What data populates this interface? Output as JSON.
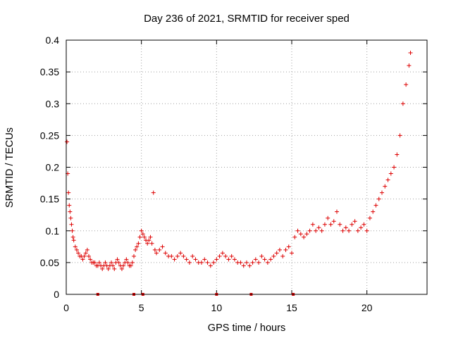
{
  "chart_data": {
    "type": "scatter",
    "title": "Day 236 of 2021, SRMTID for receiver sped",
    "xlabel": "GPS time / hours",
    "ylabel": "SRMTID / TECUs",
    "xlim": [
      0,
      24
    ],
    "ylim": [
      0,
      0.4
    ],
    "x_ticks": [
      0,
      5,
      10,
      15,
      20
    ],
    "x_tick_labels": [
      "0",
      "5",
      "10",
      "15",
      "20"
    ],
    "y_ticks": [
      0,
      0.05,
      0.1,
      0.15,
      0.2,
      0.25,
      0.3,
      0.35,
      0.4
    ],
    "y_tick_labels": [
      "0",
      "0.05",
      "0.1",
      "0.15",
      "0.2",
      "0.25",
      "0.3",
      "0.35",
      "0.4"
    ],
    "grid": true,
    "marker": "plus",
    "marker_color": "#dd0000",
    "baseline_marks_x": [
      2.1,
      4.5,
      5.1,
      10.0,
      12.3,
      15.1
    ],
    "series": [
      {
        "name": "SRMTID",
        "x": [
          0.05,
          0.1,
          0.15,
          0.2,
          0.25,
          0.3,
          0.35,
          0.4,
          0.45,
          0.5,
          0.6,
          0.7,
          0.8,
          0.9,
          1.0,
          1.1,
          1.2,
          1.3,
          1.4,
          1.5,
          1.6,
          1.7,
          1.8,
          1.9,
          2.0,
          2.1,
          2.2,
          2.3,
          2.4,
          2.5,
          2.6,
          2.7,
          2.8,
          2.9,
          3.0,
          3.1,
          3.2,
          3.3,
          3.4,
          3.5,
          3.6,
          3.7,
          3.8,
          3.9,
          4.0,
          4.1,
          4.2,
          4.3,
          4.4,
          4.5,
          4.6,
          4.7,
          4.8,
          4.9,
          5.0,
          5.1,
          5.2,
          5.3,
          5.4,
          5.5,
          5.6,
          5.7,
          5.8,
          5.9,
          6.0,
          6.2,
          6.4,
          6.6,
          6.8,
          7.0,
          7.2,
          7.4,
          7.6,
          7.8,
          8.0,
          8.2,
          8.4,
          8.6,
          8.8,
          9.0,
          9.2,
          9.4,
          9.6,
          9.8,
          10.0,
          10.2,
          10.4,
          10.6,
          10.8,
          11.0,
          11.2,
          11.4,
          11.6,
          11.8,
          12.0,
          12.2,
          12.4,
          12.6,
          12.8,
          13.0,
          13.2,
          13.4,
          13.6,
          13.8,
          14.0,
          14.2,
          14.4,
          14.6,
          14.8,
          15.0,
          15.2,
          15.4,
          15.6,
          15.8,
          16.0,
          16.2,
          16.4,
          16.6,
          16.8,
          17.0,
          17.2,
          17.4,
          17.6,
          17.8,
          18.0,
          18.2,
          18.4,
          18.6,
          18.8,
          19.0,
          19.2,
          19.4,
          19.6,
          19.8,
          20.0,
          20.2,
          20.4,
          20.6,
          20.8,
          21.0,
          21.2,
          21.4,
          21.6,
          21.8,
          22.0,
          22.2,
          22.4,
          22.6,
          22.8,
          22.9
        ],
        "y": [
          0.24,
          0.19,
          0.16,
          0.14,
          0.13,
          0.12,
          0.11,
          0.1,
          0.09,
          0.085,
          0.075,
          0.07,
          0.065,
          0.06,
          0.06,
          0.055,
          0.06,
          0.065,
          0.07,
          0.06,
          0.055,
          0.05,
          0.05,
          0.05,
          0.045,
          0.045,
          0.05,
          0.045,
          0.04,
          0.045,
          0.05,
          0.045,
          0.04,
          0.045,
          0.05,
          0.045,
          0.04,
          0.05,
          0.055,
          0.05,
          0.045,
          0.04,
          0.045,
          0.05,
          0.055,
          0.05,
          0.045,
          0.045,
          0.05,
          0.06,
          0.07,
          0.075,
          0.08,
          0.09,
          0.1,
          0.095,
          0.09,
          0.085,
          0.08,
          0.085,
          0.09,
          0.08,
          0.16,
          0.07,
          0.065,
          0.07,
          0.075,
          0.065,
          0.06,
          0.06,
          0.055,
          0.06,
          0.065,
          0.06,
          0.055,
          0.05,
          0.06,
          0.055,
          0.05,
          0.05,
          0.055,
          0.05,
          0.045,
          0.05,
          0.055,
          0.06,
          0.065,
          0.06,
          0.055,
          0.06,
          0.055,
          0.05,
          0.05,
          0.045,
          0.05,
          0.045,
          0.05,
          0.055,
          0.05,
          0.06,
          0.055,
          0.05,
          0.055,
          0.06,
          0.065,
          0.07,
          0.06,
          0.07,
          0.075,
          0.065,
          0.09,
          0.1,
          0.095,
          0.09,
          0.095,
          0.1,
          0.11,
          0.1,
          0.105,
          0.1,
          0.11,
          0.12,
          0.11,
          0.115,
          0.13,
          0.11,
          0.1,
          0.105,
          0.1,
          0.11,
          0.115,
          0.1,
          0.105,
          0.11,
          0.1,
          0.12,
          0.13,
          0.14,
          0.15,
          0.16,
          0.17,
          0.18,
          0.19,
          0.2,
          0.22,
          0.25,
          0.3,
          0.33,
          0.36,
          0.38
        ]
      }
    ]
  }
}
